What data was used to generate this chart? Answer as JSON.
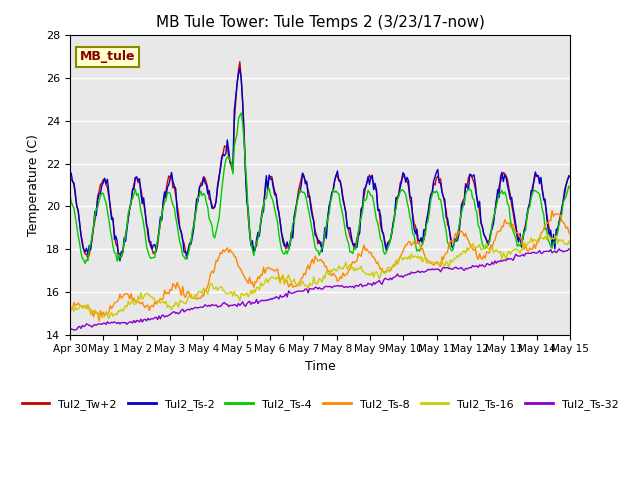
{
  "title": "MB Tule Tower: Tule Temps 2 (3/23/17-now)",
  "xlabel": "Time",
  "ylabel": "Temperature (C)",
  "ylim": [
    14,
    28
  ],
  "yticks": [
    14,
    16,
    18,
    20,
    22,
    24,
    26,
    28
  ],
  "x_labels": [
    "Apr 30",
    "May 1",
    "May 2",
    "May 3",
    "May 4",
    "May 5",
    "May 6",
    "May 7",
    "May 8",
    "May 9",
    "May 10",
    "May 11",
    "May 12",
    "May 13",
    "May 14",
    "May 15"
  ],
  "watermark": "MB_tule",
  "plot_bg_color": "#e8e8e8",
  "series": [
    {
      "label": "Tul2_Tw+2",
      "color": "#cc0000"
    },
    {
      "label": "Tul2_Ts-2",
      "color": "#0000cc"
    },
    {
      "label": "Tul2_Ts-4",
      "color": "#00cc00"
    },
    {
      "label": "Tul2_Ts-8",
      "color": "#ff8800"
    },
    {
      "label": "Tul2_Ts-16",
      "color": "#cccc00"
    },
    {
      "label": "Tul2_Ts-32",
      "color": "#8800cc"
    }
  ]
}
